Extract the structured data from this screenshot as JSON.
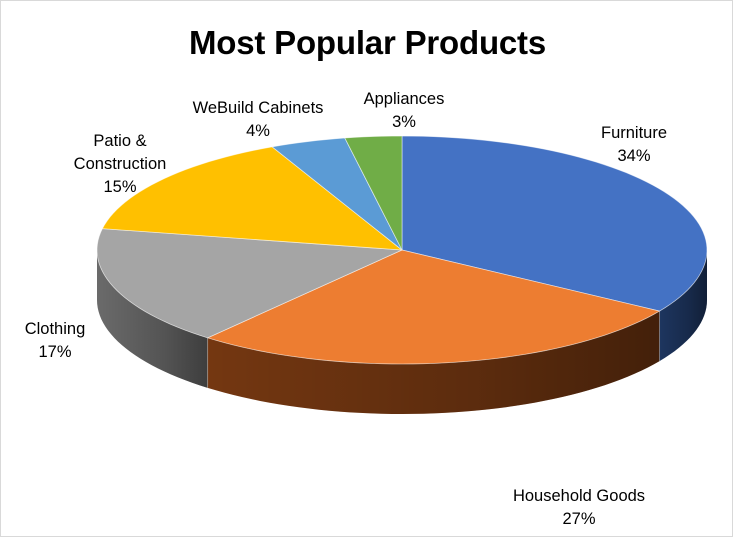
{
  "chart_data": {
    "type": "pie",
    "title": "Most Popular Products",
    "slices": [
      {
        "label": "Furniture",
        "value": 34,
        "pct_label": "34%",
        "color": "#4472C4",
        "side_color": "#1f3864"
      },
      {
        "label": "Household Goods",
        "value": 27,
        "pct_label": "27%",
        "color": "#ED7D31",
        "side_color": "#7a3a12"
      },
      {
        "label": "Clothing",
        "value": 17,
        "pct_label": "17%",
        "color": "#A5A5A5",
        "side_color": "#707070"
      },
      {
        "label": "Patio & Construction",
        "value": 15,
        "pct_label": "15%",
        "color": "#FFC000",
        "side_color": "#a07800"
      },
      {
        "label": "WeBuild Cabinets",
        "value": 4,
        "pct_label": "4%",
        "color": "#5B9BD5",
        "side_color": "#2e5f8a"
      },
      {
        "label": "Appliances",
        "value": 3,
        "pct_label": "3%",
        "color": "#70AD47",
        "side_color": "#3f6b22"
      }
    ],
    "start_angle_deg": 90,
    "direction": "clockwise",
    "style": "3d",
    "legend": "none"
  },
  "labels": {
    "furniture_name": "Furniture",
    "furniture_pct": "34%",
    "household_name": "Household Goods",
    "household_pct": "27%",
    "clothing_name": "Clothing",
    "clothing_pct": "17%",
    "patio_name_1": "Patio &",
    "patio_name_2": "Construction",
    "patio_pct": "15%",
    "webuild_name": "WeBuild Cabinets",
    "webuild_pct": "4%",
    "appliances_name": "Appliances",
    "appliances_pct": "3%"
  }
}
